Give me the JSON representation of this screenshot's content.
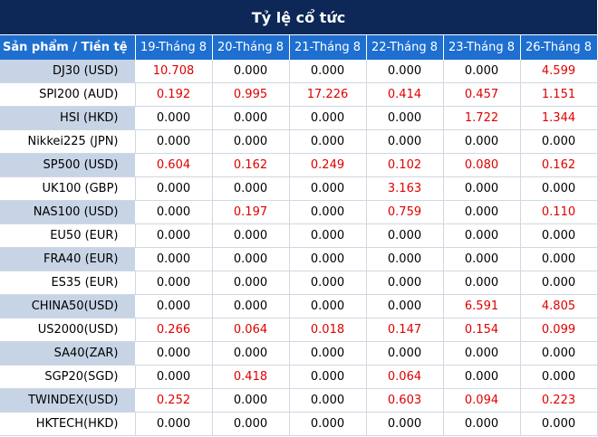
{
  "title": "Tỷ lệ cổ tức",
  "header": {
    "first": "Sản phẩm / Tiền tệ",
    "dates": [
      "19-Tháng 8",
      "20-Tháng 8",
      "21-Tháng 8",
      "22-Tháng 8",
      "23-Tháng 8",
      "26-Tháng 8"
    ]
  },
  "rows": [
    {
      "name": "DJ30 (USD)",
      "values": [
        "10.708",
        "0.000",
        "0.000",
        "0.000",
        "0.000",
        "4.599"
      ]
    },
    {
      "name": "SPI200 (AUD)",
      "values": [
        "0.192",
        "0.995",
        "17.226",
        "0.414",
        "0.457",
        "1.151"
      ]
    },
    {
      "name": "HSI (HKD)",
      "values": [
        "0.000",
        "0.000",
        "0.000",
        "0.000",
        "1.722",
        "1.344"
      ]
    },
    {
      "name": "Nikkei225 (JPN)",
      "values": [
        "0.000",
        "0.000",
        "0.000",
        "0.000",
        "0.000",
        "0.000"
      ]
    },
    {
      "name": "SP500 (USD)",
      "values": [
        "0.604",
        "0.162",
        "0.249",
        "0.102",
        "0.080",
        "0.162"
      ]
    },
    {
      "name": "UK100 (GBP)",
      "values": [
        "0.000",
        "0.000",
        "0.000",
        "3.163",
        "0.000",
        "0.000"
      ]
    },
    {
      "name": "NAS100 (USD)",
      "values": [
        "0.000",
        "0.197",
        "0.000",
        "0.759",
        "0.000",
        "0.110"
      ]
    },
    {
      "name": "EU50 (EUR)",
      "values": [
        "0.000",
        "0.000",
        "0.000",
        "0.000",
        "0.000",
        "0.000"
      ]
    },
    {
      "name": "FRA40 (EUR)",
      "values": [
        "0.000",
        "0.000",
        "0.000",
        "0.000",
        "0.000",
        "0.000"
      ]
    },
    {
      "name": "ES35 (EUR)",
      "values": [
        "0.000",
        "0.000",
        "0.000",
        "0.000",
        "0.000",
        "0.000"
      ]
    },
    {
      "name": "CHINA50(USD)",
      "values": [
        "0.000",
        "0.000",
        "0.000",
        "0.000",
        "6.591",
        "4.805"
      ]
    },
    {
      "name": "US2000(USD)",
      "values": [
        "0.266",
        "0.064",
        "0.018",
        "0.147",
        "0.154",
        "0.099"
      ]
    },
    {
      "name": "SA40(ZAR)",
      "values": [
        "0.000",
        "0.000",
        "0.000",
        "0.000",
        "0.000",
        "0.000"
      ]
    },
    {
      "name": "SGP20(SGD)",
      "values": [
        "0.000",
        "0.418",
        "0.000",
        "0.064",
        "0.000",
        "0.000"
      ]
    },
    {
      "name": "TWINDEX(USD)",
      "values": [
        "0.252",
        "0.000",
        "0.000",
        "0.603",
        "0.094",
        "0.223"
      ]
    },
    {
      "name": "HKTECH(HKD)",
      "values": [
        "0.000",
        "0.000",
        "0.000",
        "0.000",
        "0.000",
        "0.000"
      ]
    }
  ],
  "colors": {
    "title_bg": "#0d2856",
    "header_bg": "#1e6fd0",
    "shade_bg": "#c7d4e6",
    "positive_text": "#e00000",
    "zero_text": "#000000"
  }
}
